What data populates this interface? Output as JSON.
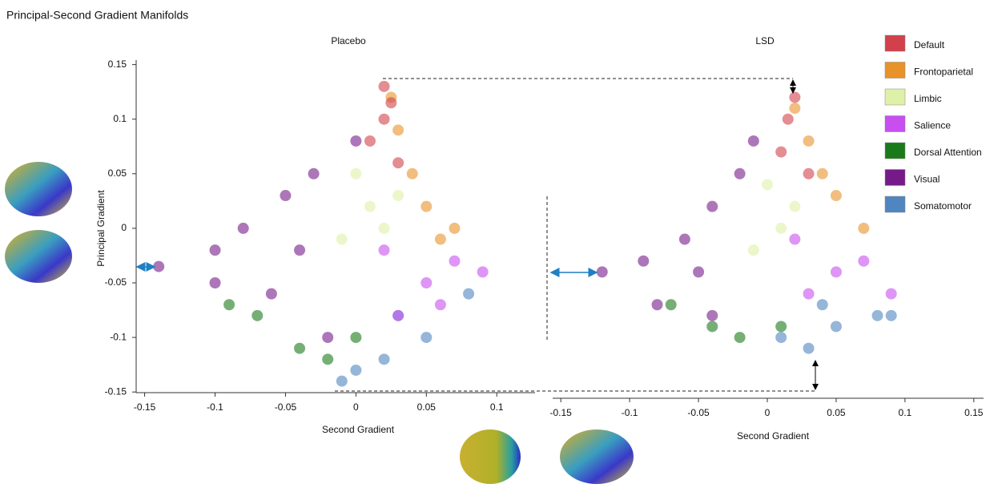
{
  "title": "Principal-Second Gradient Manifolds",
  "chart_data": [
    {
      "type": "scatter",
      "title": "Placebo",
      "x_label": "Second Gradient",
      "y_label": "Principal Gradient",
      "xlim": [
        -0.16,
        0.13
      ],
      "ylim": [
        -0.155,
        0.16
      ],
      "xticks": [
        -0.15,
        -0.1,
        -0.05,
        0,
        0.05,
        0.1
      ],
      "yticks": [
        -0.15,
        -0.1,
        -0.05,
        0,
        0.05,
        0.1,
        0.15
      ],
      "legend": "upper right",
      "series": [
        {
          "name": "Default",
          "color": "#d2414b",
          "x": [
            0.02,
            0.02,
            0.01,
            0.025,
            0.03
          ],
          "y": [
            0.13,
            0.1,
            0.08,
            0.115,
            0.06
          ]
        },
        {
          "name": "Frontoparietal",
          "color": "#e8922a",
          "x": [
            0.03,
            0.04,
            0.05,
            0.06,
            0.025,
            0.07
          ],
          "y": [
            0.09,
            0.05,
            0.02,
            -0.01,
            0.12,
            0.0
          ]
        },
        {
          "name": "Limbic",
          "color": "#dff0a8",
          "x": [
            0.0,
            0.01,
            -0.01,
            0.02,
            0.03
          ],
          "y": [
            0.05,
            0.02,
            -0.01,
            0.0,
            0.03
          ]
        },
        {
          "name": "Salience",
          "color": "#c84ef0",
          "x": [
            0.05,
            0.07,
            0.09,
            0.03,
            0.06,
            0.02
          ],
          "y": [
            -0.05,
            -0.03,
            -0.04,
            -0.08,
            -0.07,
            -0.02
          ]
        },
        {
          "name": "Dorsal Attention",
          "color": "#1a7a1a",
          "x": [
            -0.07,
            -0.04,
            -0.02,
            0.0,
            -0.09
          ],
          "y": [
            -0.08,
            -0.11,
            -0.12,
            -0.1,
            -0.07
          ]
        },
        {
          "name": "Visual",
          "color": "#761a8a",
          "x": [
            -0.14,
            -0.1,
            -0.08,
            -0.05,
            -0.03,
            -0.06,
            -0.02,
            0.0,
            -0.1,
            -0.04
          ],
          "y": [
            -0.035,
            -0.02,
            0.0,
            0.03,
            0.05,
            -0.06,
            -0.1,
            0.08,
            -0.05,
            -0.02
          ]
        },
        {
          "name": "Somatomotor",
          "color": "#4f86c0",
          "x": [
            0.0,
            0.02,
            0.05,
            0.08,
            -0.01,
            0.03
          ],
          "y": [
            -0.13,
            -0.12,
            -0.1,
            -0.06,
            -0.14,
            -0.08
          ]
        }
      ]
    },
    {
      "type": "scatter",
      "title": "LSD",
      "x_label": "Second Gradient",
      "xlim": [
        -0.16,
        0.16
      ],
      "ylim": [
        -0.155,
        0.16
      ],
      "xticks": [
        -0.15,
        -0.1,
        -0.05,
        0,
        0.05,
        0.1,
        0.15
      ],
      "series": [
        {
          "name": "Default",
          "color": "#d2414b",
          "x": [
            0.02,
            0.015,
            0.01,
            0.03
          ],
          "y": [
            0.12,
            0.1,
            0.07,
            0.05
          ]
        },
        {
          "name": "Frontoparietal",
          "color": "#e8922a",
          "x": [
            0.02,
            0.03,
            0.05,
            0.07,
            0.04
          ],
          "y": [
            0.11,
            0.08,
            0.03,
            0.0,
            0.05
          ]
        },
        {
          "name": "Limbic",
          "color": "#dff0a8",
          "x": [
            0.0,
            0.01,
            -0.01,
            0.02
          ],
          "y": [
            0.04,
            0.0,
            -0.02,
            0.02
          ]
        },
        {
          "name": "Salience",
          "color": "#c84ef0",
          "x": [
            0.05,
            0.07,
            0.09,
            0.03,
            0.02
          ],
          "y": [
            -0.04,
            -0.03,
            -0.06,
            -0.06,
            -0.01
          ]
        },
        {
          "name": "Dorsal Attention",
          "color": "#1a7a1a",
          "x": [
            -0.07,
            -0.04,
            -0.02,
            0.01
          ],
          "y": [
            -0.07,
            -0.09,
            -0.1,
            -0.09
          ]
        },
        {
          "name": "Visual",
          "color": "#761a8a",
          "x": [
            -0.12,
            -0.09,
            -0.06,
            -0.04,
            -0.02,
            -0.08,
            -0.04,
            -0.01,
            -0.05
          ],
          "y": [
            -0.04,
            -0.03,
            -0.01,
            0.02,
            0.05,
            -0.07,
            -0.08,
            0.08,
            -0.04
          ]
        },
        {
          "name": "Somatomotor",
          "color": "#4f86c0",
          "x": [
            0.01,
            0.03,
            0.05,
            0.08,
            0.09,
            0.04
          ],
          "y": [
            -0.1,
            -0.11,
            -0.09,
            -0.08,
            -0.08,
            -0.07
          ]
        }
      ]
    }
  ]
}
